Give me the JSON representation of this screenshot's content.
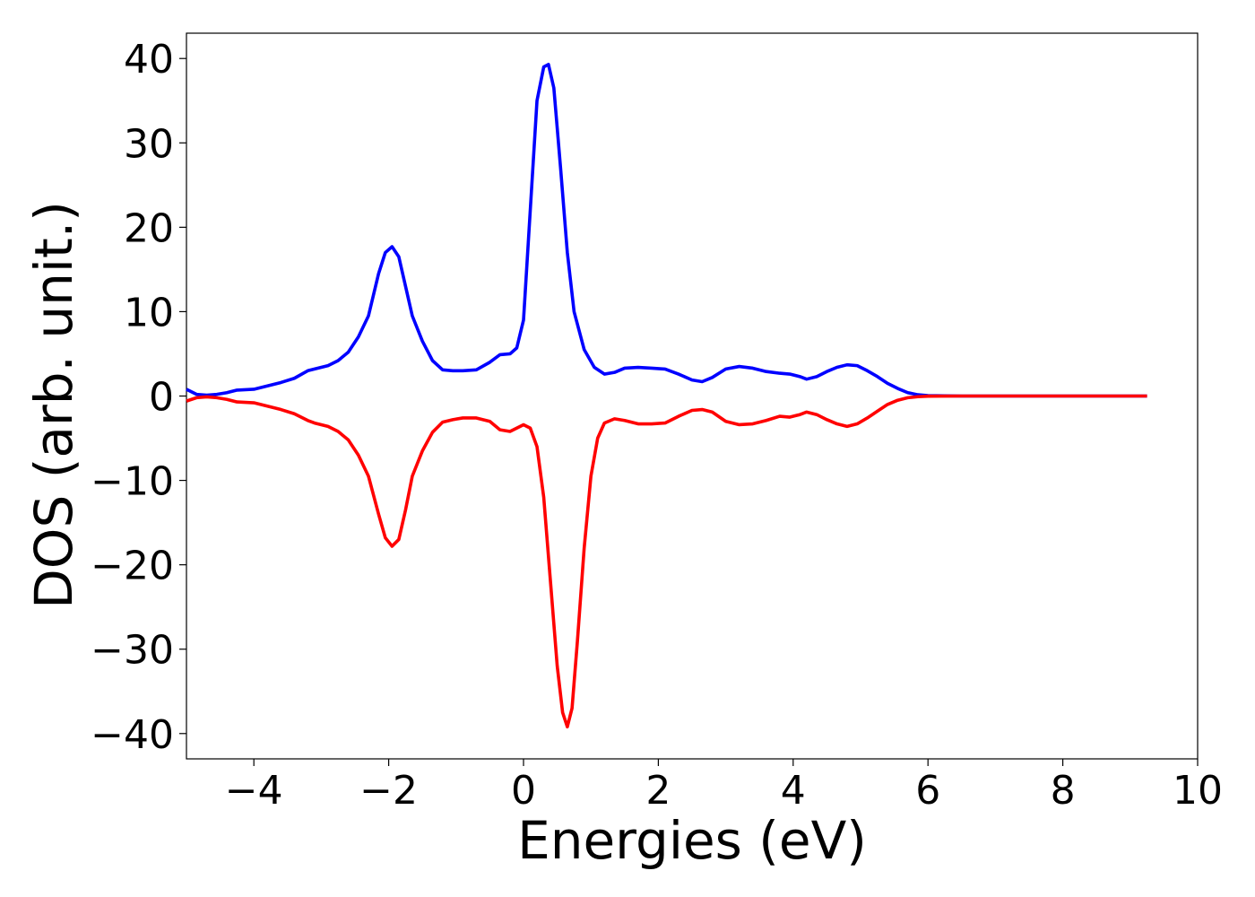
{
  "chart_data": {
    "type": "line",
    "title": "",
    "xlabel": "Energies (eV)",
    "ylabel": "DOS (arb. unit.)",
    "xlim": [
      -5,
      10
    ],
    "ylim": [
      -43,
      43
    ],
    "xticks": [
      -4,
      -2,
      0,
      2,
      4,
      6,
      8,
      10
    ],
    "yticks": [
      -40,
      -30,
      -20,
      -10,
      0,
      10,
      20,
      30,
      40
    ],
    "xtick_labels": [
      "−4",
      "−2",
      "0",
      "2",
      "4",
      "6",
      "8",
      "10"
    ],
    "ytick_labels": [
      "−40",
      "−30",
      "−20",
      "−10",
      "0",
      "10",
      "20",
      "30",
      "40"
    ],
    "grid": false,
    "legend": "none",
    "series": [
      {
        "color": "#0000ff",
        "x": [
          -5.0,
          -4.85,
          -4.7,
          -4.55,
          -4.4,
          -4.25,
          -4.0,
          -3.8,
          -3.6,
          -3.4,
          -3.2,
          -3.1,
          -2.9,
          -2.75,
          -2.6,
          -2.45,
          -2.3,
          -2.15,
          -2.05,
          -1.95,
          -1.85,
          -1.75,
          -1.65,
          -1.5,
          -1.35,
          -1.2,
          -1.05,
          -0.9,
          -0.7,
          -0.5,
          -0.35,
          -0.2,
          -0.1,
          0.0,
          0.1,
          0.2,
          0.3,
          0.37,
          0.45,
          0.55,
          0.65,
          0.75,
          0.9,
          1.05,
          1.2,
          1.35,
          1.5,
          1.7,
          1.9,
          2.1,
          2.3,
          2.5,
          2.65,
          2.8,
          3.0,
          3.2,
          3.4,
          3.6,
          3.8,
          3.95,
          4.1,
          4.2,
          4.35,
          4.5,
          4.65,
          4.8,
          4.95,
          5.1,
          5.25,
          5.4,
          5.55,
          5.7,
          5.85,
          6.0,
          6.5,
          7.0,
          8.0,
          9.0,
          9.25
        ],
        "y": [
          0.8,
          0.2,
          0.1,
          0.2,
          0.4,
          0.7,
          0.8,
          1.2,
          1.6,
          2.1,
          3.0,
          3.2,
          3.6,
          4.2,
          5.2,
          7.0,
          9.5,
          14.5,
          17.0,
          17.7,
          16.5,
          13.0,
          9.5,
          6.5,
          4.2,
          3.1,
          3.0,
          3.0,
          3.1,
          4.0,
          4.9,
          5.0,
          5.7,
          9.0,
          22.0,
          35.0,
          39.0,
          39.3,
          36.5,
          27.0,
          17.0,
          10.0,
          5.5,
          3.4,
          2.6,
          2.8,
          3.3,
          3.4,
          3.3,
          3.2,
          2.6,
          1.9,
          1.7,
          2.2,
          3.2,
          3.5,
          3.3,
          2.9,
          2.7,
          2.6,
          2.3,
          2.0,
          2.3,
          2.9,
          3.4,
          3.7,
          3.6,
          3.0,
          2.3,
          1.5,
          0.9,
          0.4,
          0.15,
          0.05,
          0.0,
          0.0,
          0.0,
          0.0,
          0.0
        ]
      },
      {
        "color": "#ff0000",
        "x": [
          -5.0,
          -4.85,
          -4.7,
          -4.55,
          -4.4,
          -4.25,
          -4.0,
          -3.8,
          -3.6,
          -3.4,
          -3.2,
          -3.1,
          -2.9,
          -2.75,
          -2.6,
          -2.45,
          -2.3,
          -2.15,
          -2.05,
          -1.95,
          -1.85,
          -1.75,
          -1.65,
          -1.5,
          -1.35,
          -1.2,
          -1.05,
          -0.9,
          -0.7,
          -0.5,
          -0.35,
          -0.2,
          -0.1,
          0.0,
          0.1,
          0.2,
          0.3,
          0.4,
          0.5,
          0.58,
          0.65,
          0.72,
          0.8,
          0.9,
          1.0,
          1.1,
          1.2,
          1.35,
          1.5,
          1.7,
          1.9,
          2.1,
          2.3,
          2.5,
          2.65,
          2.8,
          3.0,
          3.2,
          3.4,
          3.6,
          3.8,
          3.95,
          4.1,
          4.2,
          4.35,
          4.5,
          4.65,
          4.8,
          4.95,
          5.1,
          5.25,
          5.4,
          5.55,
          5.7,
          5.85,
          6.0,
          6.5,
          7.0,
          8.0,
          9.0,
          9.25
        ],
        "y": [
          -0.6,
          -0.2,
          -0.1,
          -0.2,
          -0.4,
          -0.7,
          -0.8,
          -1.2,
          -1.6,
          -2.1,
          -2.9,
          -3.2,
          -3.6,
          -4.2,
          -5.2,
          -7.0,
          -9.5,
          -14.0,
          -16.8,
          -17.8,
          -17.0,
          -13.5,
          -9.5,
          -6.5,
          -4.3,
          -3.1,
          -2.8,
          -2.6,
          -2.6,
          -3.0,
          -4.0,
          -4.2,
          -3.8,
          -3.4,
          -3.8,
          -6.0,
          -12.0,
          -22.0,
          -32.0,
          -37.5,
          -39.2,
          -37.0,
          -29.0,
          -18.0,
          -9.5,
          -5.0,
          -3.2,
          -2.7,
          -2.9,
          -3.3,
          -3.3,
          -3.2,
          -2.4,
          -1.7,
          -1.6,
          -1.9,
          -3.0,
          -3.4,
          -3.3,
          -2.9,
          -2.4,
          -2.5,
          -2.2,
          -1.9,
          -2.2,
          -2.8,
          -3.3,
          -3.6,
          -3.3,
          -2.6,
          -1.8,
          -1.0,
          -0.5,
          -0.2,
          -0.08,
          -0.02,
          0.0,
          0.0,
          0.0,
          0.0,
          0.0
        ]
      }
    ]
  }
}
